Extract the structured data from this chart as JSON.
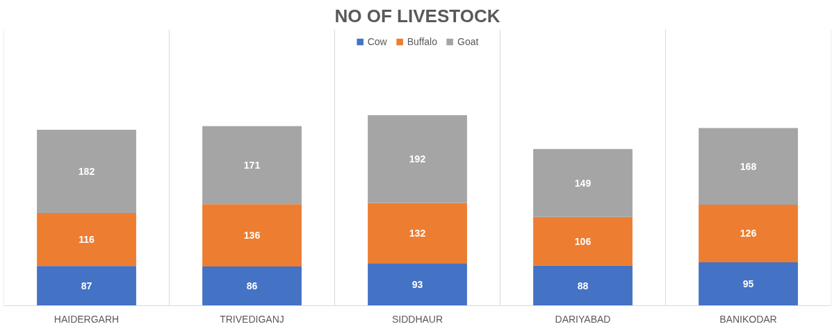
{
  "chart_data": {
    "type": "bar",
    "title": "NO OF LIVESTOCK",
    "stacked": true,
    "data_labels": true,
    "legend": "top",
    "grid": "x",
    "categories": [
      "HAIDERGARH",
      "TRIVEDIGANJ",
      "SIDDHAUR",
      "DARIYABAD",
      "BANIKODAR"
    ],
    "series": [
      {
        "name": "Cow",
        "color": "#4472c4",
        "values": [
          87,
          86,
          93,
          88,
          95
        ]
      },
      {
        "name": "Buffalo",
        "color": "#ed7d31",
        "values": [
          116,
          136,
          132,
          106,
          126
        ]
      },
      {
        "name": "Goat",
        "color": "#a5a5a5",
        "values": [
          182,
          171,
          192,
          149,
          168
        ]
      }
    ]
  }
}
